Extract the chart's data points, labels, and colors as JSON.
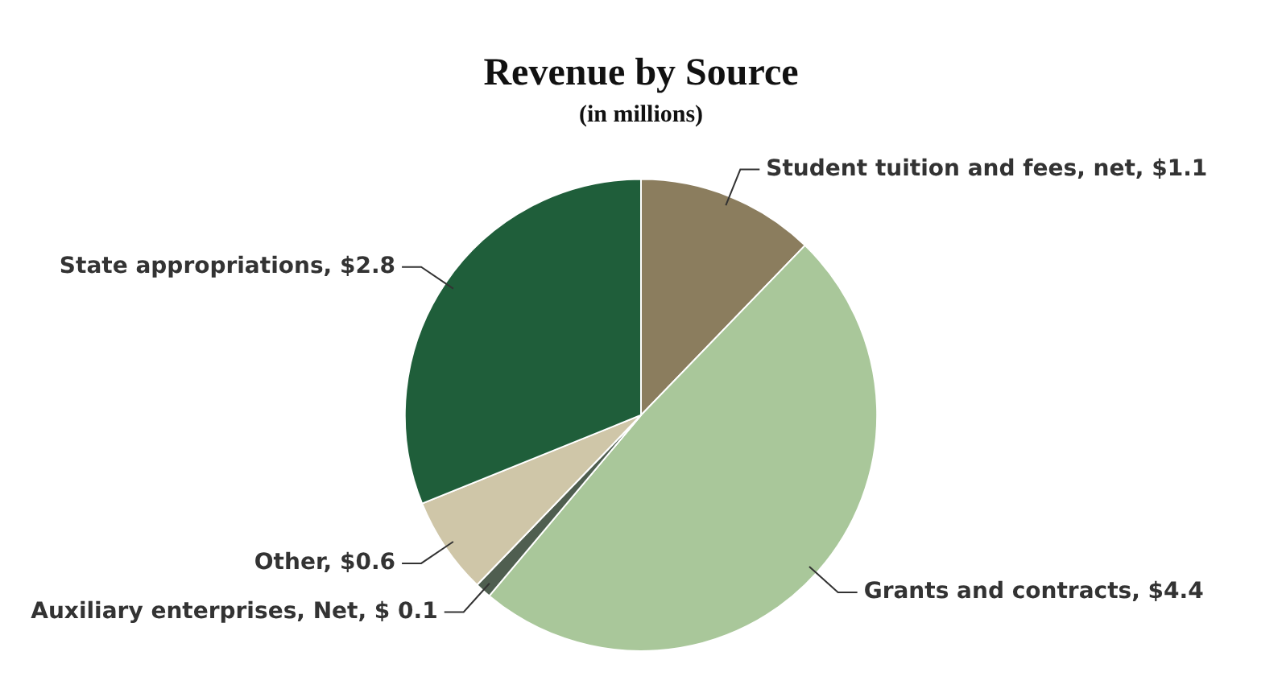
{
  "chart_data": {
    "type": "pie",
    "title": "Revenue by Source",
    "subtitle": "(in millions)",
    "categories": [
      "Student tuition and fees, net",
      "Grants and contracts",
      "Auxiliary enterprises, Net",
      "Other",
      "State appropriations"
    ],
    "values": [
      1.1,
      4.4,
      0.1,
      0.6,
      2.8
    ],
    "value_labels": [
      "$1.1",
      "$4.4",
      "$ 0.1",
      "$0.6",
      "$2.8"
    ],
    "colors": [
      "#8b7d5e",
      "#a9c79a",
      "#4f5e50",
      "#cfc6a8",
      "#1f5e3a"
    ]
  }
}
